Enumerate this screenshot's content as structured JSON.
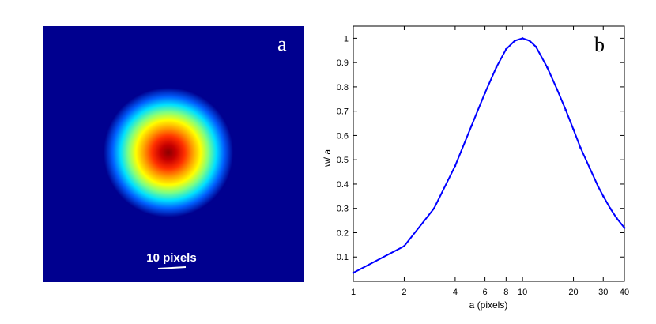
{
  "panels": {
    "a": {
      "letter": "a",
      "scale_bar_label": "10 pixels"
    },
    "b": {
      "letter": "b"
    }
  },
  "colors": {
    "colormap_background": "#00008f",
    "line": "#0000ff"
  },
  "chart_data": [
    {
      "type": "heatmap",
      "panel": "a",
      "description_pattern": "radially symmetric gaussian spot, jet colormap",
      "annotations": [
        "a",
        "10 pixels"
      ]
    },
    {
      "type": "line",
      "panel": "b",
      "title": "",
      "xlabel": "a (pixels)",
      "ylabel": "w/ a",
      "x_scale": "log",
      "xlim": [
        1,
        40
      ],
      "ylim": [
        0,
        1.05
      ],
      "x_ticks": [
        1,
        2,
        4,
        6,
        8,
        10,
        20,
        30,
        40
      ],
      "y_ticks": [
        0.1,
        0.2,
        0.3,
        0.4,
        0.5,
        0.6,
        0.7,
        0.8,
        0.9,
        1
      ],
      "grid": false,
      "series": [
        {
          "x": [
            1,
            2,
            3,
            4,
            5,
            6,
            7,
            8,
            9,
            10,
            11,
            12,
            14,
            16,
            18,
            20,
            22,
            25,
            28,
            30,
            33,
            36,
            40
          ],
          "y": [
            0.035,
            0.145,
            0.3,
            0.475,
            0.64,
            0.775,
            0.88,
            0.955,
            0.99,
            1.0,
            0.99,
            0.965,
            0.88,
            0.79,
            0.705,
            0.625,
            0.55,
            0.465,
            0.39,
            0.35,
            0.3,
            0.26,
            0.22
          ]
        }
      ]
    }
  ]
}
